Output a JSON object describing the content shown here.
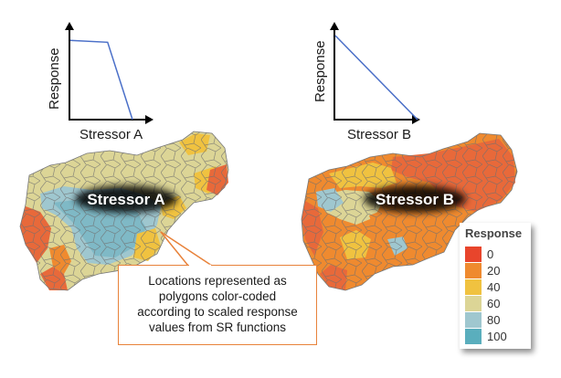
{
  "chart_a": {
    "xlabel": "Stressor A",
    "ylabel": "Response",
    "type": "line",
    "series": [
      {
        "x": [
          0,
          0.6,
          1.0
        ],
        "y": [
          0.85,
          0.83,
          0
        ]
      }
    ]
  },
  "chart_b": {
    "xlabel": "Stressor B",
    "ylabel": "Response",
    "type": "line",
    "series": [
      {
        "x": [
          0,
          1.0
        ],
        "y": [
          1.0,
          0
        ]
      }
    ]
  },
  "maps": {
    "left_label": "Stressor A",
    "right_label": "Stressor B"
  },
  "callout": {
    "lines": [
      "Locations represented as",
      "polygons color-coded",
      "according to scaled response",
      "values from SR functions"
    ]
  },
  "legend": {
    "title": "Response",
    "items": [
      {
        "label": "0",
        "color": "#e8452c"
      },
      {
        "label": "20",
        "color": "#ef8a2f"
      },
      {
        "label": "40",
        "color": "#f0c240"
      },
      {
        "label": "60",
        "color": "#dcd596"
      },
      {
        "label": "80",
        "color": "#9fc7cf"
      },
      {
        "label": "100",
        "color": "#5aaebd"
      }
    ]
  },
  "colors": {
    "line": "#4a6fc8",
    "callout_border": "#e8823a"
  }
}
